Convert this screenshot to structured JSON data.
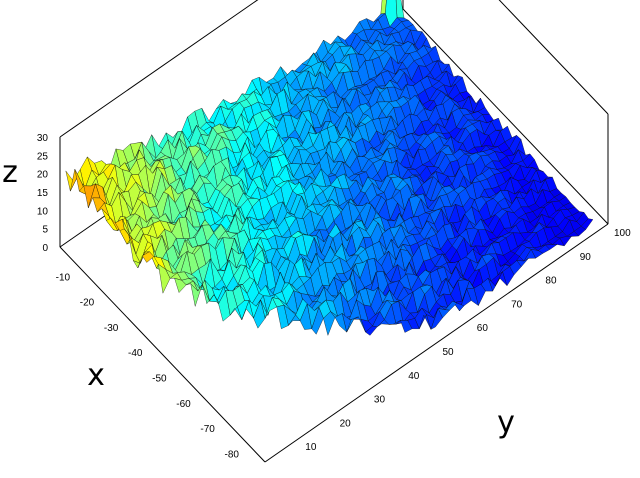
{
  "chart_data": {
    "type": "surface3d",
    "title": "",
    "xlabel": "x",
    "ylabel": "y",
    "zlabel": "z",
    "x_ticks": [
      "-10",
      "-20",
      "-30",
      "-40",
      "-50",
      "-60",
      "-70",
      "-80"
    ],
    "y_ticks": [
      "10",
      "20",
      "30",
      "40",
      "50",
      "60",
      "70",
      "80",
      "90",
      "100"
    ],
    "z_ticks": [
      "0",
      "5",
      "10",
      "15",
      "20",
      "25",
      "30"
    ],
    "xlim": [
      -85,
      0
    ],
    "ylim": [
      0,
      100
    ],
    "zlim": [
      0,
      30
    ],
    "colormap": "jet",
    "z_profile": {
      "note_x_values": [
        -2,
        -10,
        -20,
        -30,
        -40,
        -50,
        -60,
        -70,
        -80
      ],
      "typical_z_at_y_min": [
        21,
        22,
        20,
        19,
        17,
        15,
        13,
        11,
        9
      ],
      "typical_z_at_y_max": [
        3,
        3,
        2,
        2,
        1,
        1,
        1,
        0,
        0
      ]
    },
    "peak": {
      "x": -2,
      "y": 95,
      "z": 30
    }
  }
}
